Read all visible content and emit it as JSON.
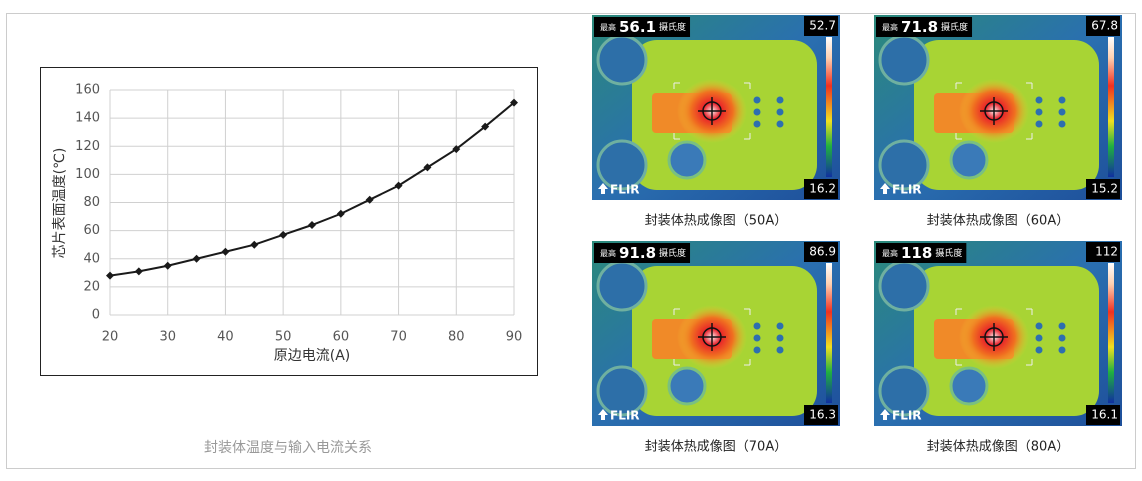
{
  "chart_data": {
    "type": "line",
    "x_label": "原边电流(A)",
    "y_label": "芯片表面温度(℃)",
    "x": [
      20,
      25,
      30,
      35,
      40,
      45,
      50,
      55,
      60,
      65,
      70,
      75,
      80,
      85,
      90
    ],
    "values": [
      28,
      31,
      35,
      40,
      45,
      50,
      57,
      64,
      72,
      82,
      92,
      105,
      118,
      134,
      151
    ],
    "color": "#1a1a1a",
    "xlim": [
      20,
      90
    ],
    "xticks": [
      20,
      30,
      40,
      50,
      60,
      70,
      80,
      90
    ],
    "ylim": [
      0,
      160
    ],
    "yticks": [
      0,
      20,
      40,
      60,
      80,
      100,
      120,
      140,
      160
    ],
    "grid": true
  },
  "chart_caption": "封装体温度与输入电流关系",
  "thermal_images": [
    {
      "max_label": "最高",
      "max_value": 56.1,
      "unit": "摄氏度",
      "scale_max": 52.7,
      "scale_min": 16.2,
      "brand": "FLIR",
      "caption": "封装体热成像图（50A）"
    },
    {
      "max_label": "最高",
      "max_value": 71.8,
      "unit": "摄氏度",
      "scale_max": 67.8,
      "scale_min": 15.2,
      "brand": "FLIR",
      "caption": "封装体热成像图（60A）"
    },
    {
      "max_label": "最高",
      "max_value": 91.8,
      "unit": "摄氏度",
      "scale_max": 86.9,
      "scale_min": 16.3,
      "brand": "FLIR",
      "caption": "封装体热成像图（70A）"
    },
    {
      "max_label": "最高",
      "max_value": 118,
      "unit": "摄氏度",
      "scale_max": 112,
      "scale_min": 16.1,
      "brand": "FLIR",
      "caption": "封装体热成像图（80A）"
    }
  ]
}
